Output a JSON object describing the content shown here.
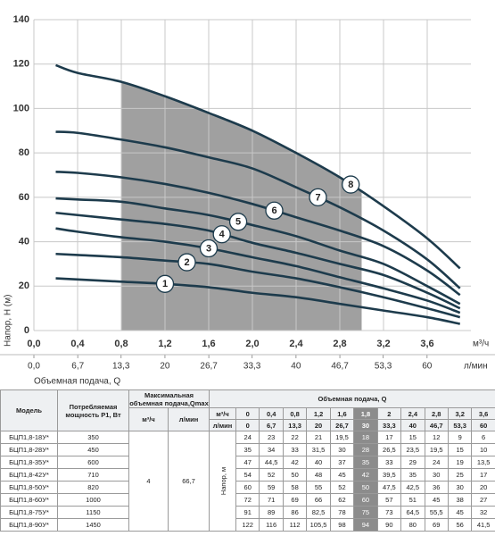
{
  "chart_data": {
    "type": "line",
    "y_label": "Напор, H (м)",
    "x_label": "Объемная подача, Q",
    "x_unit": "м³/ч",
    "x2_unit": "л/мин",
    "x": [
      0.2,
      0.4,
      0.8,
      1.2,
      1.6,
      2.0,
      2.4,
      2.8,
      3.2,
      3.6,
      3.9
    ],
    "series": [
      {
        "name": "1",
        "color": "#1d3b4c",
        "values": [
          23.5,
          23,
          22,
          21,
          19.5,
          17,
          15,
          12,
          9,
          6,
          3
        ]
      },
      {
        "name": "2",
        "color": "#1d3b4c",
        "values": [
          34.5,
          34,
          33,
          31.5,
          30,
          26.5,
          23.5,
          19.5,
          15,
          10,
          6
        ]
      },
      {
        "name": "3",
        "color": "#1d3b4c",
        "values": [
          46,
          44.5,
          42,
          40,
          37,
          33,
          29,
          24,
          19,
          13.5,
          8
        ]
      },
      {
        "name": "4",
        "color": "#1d3b4c",
        "values": [
          53,
          52,
          50,
          48,
          45,
          39.5,
          35,
          30,
          25,
          17,
          10
        ]
      },
      {
        "name": "5",
        "color": "#1d3b4c",
        "values": [
          59.5,
          59,
          58,
          55,
          52,
          47.5,
          42.5,
          36,
          30,
          20,
          12
        ]
      },
      {
        "name": "6",
        "color": "#1d3b4c",
        "values": [
          71.5,
          71,
          69,
          66,
          62,
          57,
          51,
          45,
          38,
          27,
          16
        ]
      },
      {
        "name": "7",
        "color": "#1d3b4c",
        "values": [
          89.5,
          89,
          86,
          82.5,
          78,
          73,
          64.5,
          55.5,
          45,
          32,
          19
        ]
      },
      {
        "name": "8",
        "color": "#1d3b4c",
        "values": [
          119.5,
          116,
          112,
          105.5,
          98,
          90,
          80,
          69,
          56,
          41.5,
          28
        ]
      }
    ],
    "working_range": [
      0.8,
      3.0
    ],
    "working_range_color": "#8f8f8f",
    "xlim": [
      0,
      4.0
    ],
    "xticks": [
      {
        "value": 0,
        "label": "0,0"
      },
      {
        "value": 0.4,
        "label": "0,4"
      },
      {
        "value": 0.8,
        "label": "0,8"
      },
      {
        "value": 1.2,
        "label": "1,2"
      },
      {
        "value": 1.6,
        "label": "1,6"
      },
      {
        "value": 2.0,
        "label": "2,0"
      },
      {
        "value": 2.4,
        "label": "2,4"
      },
      {
        "value": 2.8,
        "label": "2,8"
      },
      {
        "value": 3.2,
        "label": "3,2"
      },
      {
        "value": 3.6,
        "label": "3,6"
      }
    ],
    "x2lim": [
      0,
      66.7
    ],
    "x2ticks": [
      {
        "value": 0,
        "label": "0,0"
      },
      {
        "value": 6.7,
        "label": "6,7"
      },
      {
        "value": 13.3,
        "label": "13,3"
      },
      20,
      {
        "value": 26.7,
        "label": "26,7"
      },
      {
        "value": 33.3,
        "label": "33,3"
      },
      40,
      {
        "value": 46.7,
        "label": "46,7"
      },
      {
        "value": 53.3,
        "label": "53,3"
      },
      60
    ],
    "ylim": [
      0,
      140
    ],
    "yticks": [
      0,
      20,
      40,
      60,
      80,
      100,
      120,
      140
    ],
    "grid": true
  },
  "table": {
    "header": {
      "model": "Модель",
      "power": "Потребляемая мощность P1, Вт",
      "qmax": "Максимальная объемная подача,Qmax",
      "qmax_m3h": "м³/ч",
      "qmax_lmin": "л/мин",
      "q": "Объемная подача, Q",
      "unit_m3h": "м³/ч",
      "unit_lmin": "л/мин",
      "q_m3h": [
        "0",
        "0,4",
        "0,8",
        "1,2",
        "1,6",
        "1,8",
        "2",
        "2,4",
        "2,8",
        "3,2",
        "3,6"
      ],
      "q_lmin": [
        "0",
        "6,7",
        "13,3",
        "20",
        "26,7",
        "30",
        "33,3",
        "40",
        "46,7",
        "53,3",
        "60"
      ]
    },
    "qmax_m3h": "4",
    "qmax_lmin": "66,7",
    "head_label": "Напор, м",
    "rows": [
      {
        "model": "БЦП1,8-18У*",
        "power": "350",
        "heads": [
          "24",
          "23",
          "22",
          "21",
          "19,5",
          "18",
          "17",
          "15",
          "12",
          "9",
          "6"
        ]
      },
      {
        "model": "БЦП1,8-28У*",
        "power": "450",
        "heads": [
          "35",
          "34",
          "33",
          "31,5",
          "30",
          "28",
          "26,5",
          "23,5",
          "19,5",
          "15",
          "10"
        ]
      },
      {
        "model": "БЦП1,8-35У*",
        "power": "600",
        "heads": [
          "47",
          "44,5",
          "42",
          "40",
          "37",
          "35",
          "33",
          "29",
          "24",
          "19",
          "13,5"
        ]
      },
      {
        "model": "БЦП1,8-42У*",
        "power": "710",
        "heads": [
          "54",
          "52",
          "50",
          "48",
          "45",
          "42",
          "39,5",
          "35",
          "30",
          "25",
          "17"
        ]
      },
      {
        "model": "БЦП1,8-50У*",
        "power": "820",
        "heads": [
          "60",
          "59",
          "58",
          "55",
          "52",
          "50",
          "47,5",
          "42,5",
          "36",
          "30",
          "20"
        ]
      },
      {
        "model": "БЦП1,8-60У*",
        "power": "1000",
        "heads": [
          "72",
          "71",
          "69",
          "66",
          "62",
          "60",
          "57",
          "51",
          "45",
          "38",
          "27"
        ]
      },
      {
        "model": "БЦП1,8-75У*",
        "power": "1150",
        "heads": [
          "91",
          "89",
          "86",
          "82,5",
          "78",
          "75",
          "73",
          "64,5",
          "55,5",
          "45",
          "32"
        ]
      },
      {
        "model": "БЦП1,8-90У*",
        "power": "1450",
        "heads": [
          "122",
          "116",
          "112",
          "105,5",
          "98",
          "94",
          "90",
          "80",
          "69",
          "56",
          "41,5"
        ]
      }
    ]
  }
}
